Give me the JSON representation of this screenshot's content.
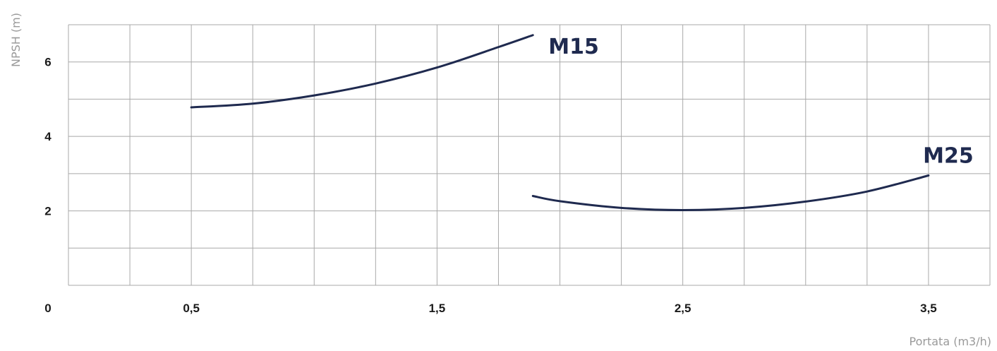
{
  "chart_data": {
    "type": "line",
    "xlabel": "Portata (m3/h)",
    "ylabel": "NPSH (m)",
    "xlim": [
      0,
      3.75
    ],
    "ylim": [
      0,
      7
    ],
    "x_ticks": [
      {
        "value": 0,
        "label": "0"
      },
      {
        "value": 0.5,
        "label": "0,5"
      },
      {
        "value": 1.5,
        "label": "1,5"
      },
      {
        "value": 2.5,
        "label": "2,5"
      },
      {
        "value": 3.5,
        "label": "3,5"
      }
    ],
    "y_ticks": [
      {
        "value": 2,
        "label": "2"
      },
      {
        "value": 4,
        "label": "4"
      },
      {
        "value": 6,
        "label": "6"
      }
    ],
    "x_grid_step": 0.25,
    "y_grid_step": 1,
    "grid": true,
    "line_color": "#1f2a4f",
    "series": [
      {
        "name": "M15",
        "x": [
          0.5,
          0.75,
          1.0,
          1.25,
          1.5,
          1.75,
          1.89
        ],
        "y": [
          4.78,
          4.88,
          5.1,
          5.42,
          5.85,
          6.4,
          6.72
        ]
      },
      {
        "name": "M25",
        "x": [
          1.89,
          2.0,
          2.25,
          2.5,
          2.75,
          3.0,
          3.25,
          3.5
        ],
        "y": [
          2.4,
          2.26,
          2.08,
          2.02,
          2.08,
          2.25,
          2.52,
          2.95
        ]
      }
    ]
  }
}
